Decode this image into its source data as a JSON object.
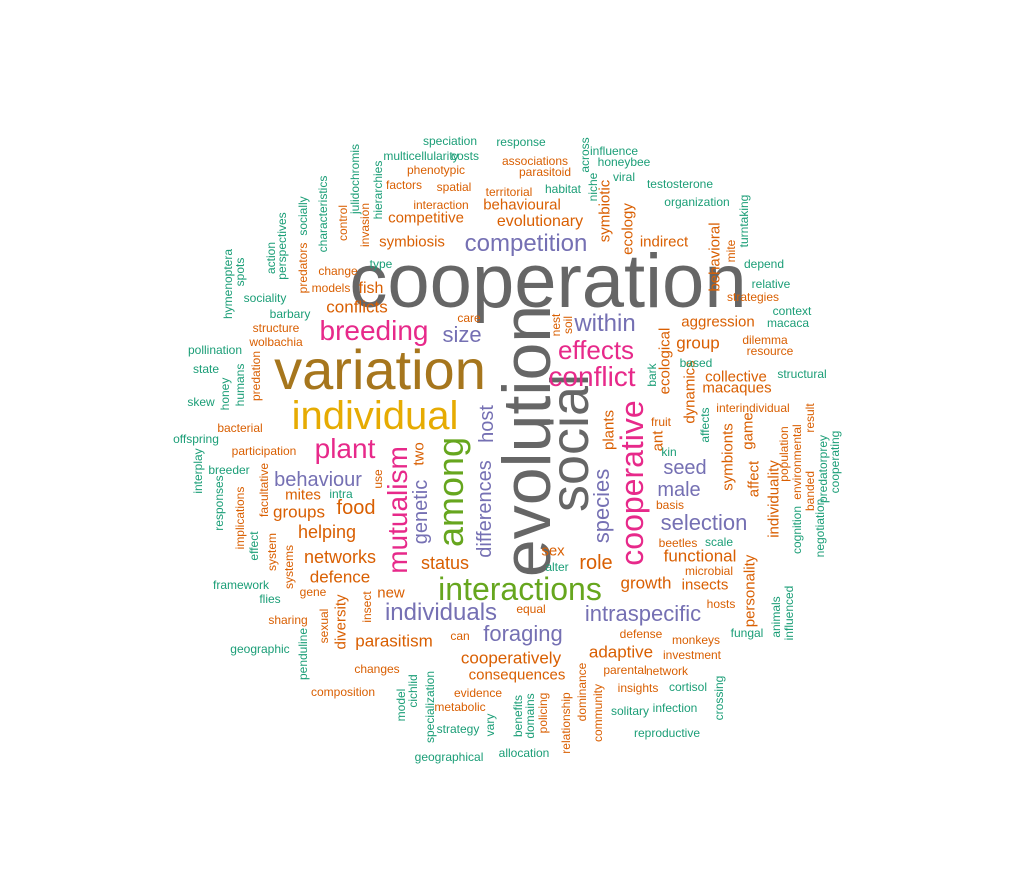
{
  "colors": {
    "teal": "#1b9e77",
    "orange": "#d95f02",
    "purple": "#7570b3",
    "magenta": "#e7298a",
    "green": "#66a61e",
    "gold": "#e6ab02",
    "brown": "#a6761d",
    "gray": "#666666"
  },
  "words": [
    "cooperation",
    "evolution",
    "variation",
    "social",
    "individual",
    "interactions",
    "among",
    "cooperative",
    "mutualism",
    "breeding",
    "plant",
    "conflict",
    "effects",
    "competition",
    "within",
    "individuals",
    "intraspecific",
    "selection",
    "species",
    "behaviour",
    "size",
    "foraging",
    "host",
    "differences",
    "seed",
    "male",
    "genetic",
    "role",
    "networks",
    "food",
    "helping",
    "status",
    "cooperatively",
    "adaptive",
    "groups",
    "defence",
    "parasitism",
    "fish",
    "conflicts",
    "mites",
    "functional",
    "growth",
    "insects",
    "group",
    "aggression",
    "collective",
    "macaques",
    "dynamics",
    "symbionts",
    "personality",
    "individuality",
    "competitive",
    "evolutionary",
    "behavioural",
    "symbiosis",
    "ecology",
    "symbiotic",
    "indirect",
    "behavioral",
    "ecological",
    "plants",
    "game",
    "consequences",
    "two",
    "new",
    "sex",
    "affect",
    "diversity",
    "insect",
    "ant",
    "fruit",
    "monkeys",
    "hosts",
    "investment",
    "network",
    "dilemma",
    "resource",
    "strategies",
    "interaction",
    "spatial",
    "territorial",
    "associations",
    "phenotypic",
    "parasitoid",
    "factors",
    "change",
    "models",
    "predators",
    "structure",
    "wolbachia",
    "predation",
    "bacterial",
    "participation",
    "facultative",
    "implications",
    "system",
    "systems",
    "gene",
    "sharing",
    "sexual",
    "changes",
    "composition",
    "evidence",
    "metabolic",
    "can",
    "equal",
    "defense",
    "parental",
    "insights",
    "cortisol",
    "infection",
    "beetles",
    "microbial",
    "fungal",
    "population",
    "environmental",
    "cognition",
    "banded",
    "result",
    "interindividual",
    "mite",
    "invasion",
    "control",
    "julidochromis",
    "multicellularity",
    "costs",
    "speciation",
    "response",
    "influence",
    "honeybee",
    "viral",
    "testosterone",
    "organization",
    "turntaking",
    "depend",
    "relative",
    "context",
    "macaca",
    "structural",
    "based",
    "bark",
    "kin",
    "affects",
    "scale",
    "basis",
    "alter",
    "care",
    "nest",
    "soil",
    "use",
    "intra",
    "habitat",
    "across",
    "niche",
    "hierarchies",
    "type",
    "characteristics",
    "socially",
    "perspectives",
    "action",
    "spots",
    "hymenoptera",
    "sociality",
    "barbary",
    "pollination",
    "state",
    "skew",
    "humans",
    "honey",
    "offspring",
    "interplay",
    "breeder",
    "responses",
    "effect",
    "framework",
    "flies",
    "geographic",
    "penduline",
    "cichlid",
    "model",
    "specialization",
    "strategy",
    "vary",
    "benefits",
    "domains",
    "policing",
    "relationship",
    "dominance",
    "community",
    "allocation",
    "geographical",
    "solitary",
    "reproductive",
    "crossing",
    "animals",
    "influenced",
    "negotiation",
    "predatorprey",
    "cooperating"
  ]
}
